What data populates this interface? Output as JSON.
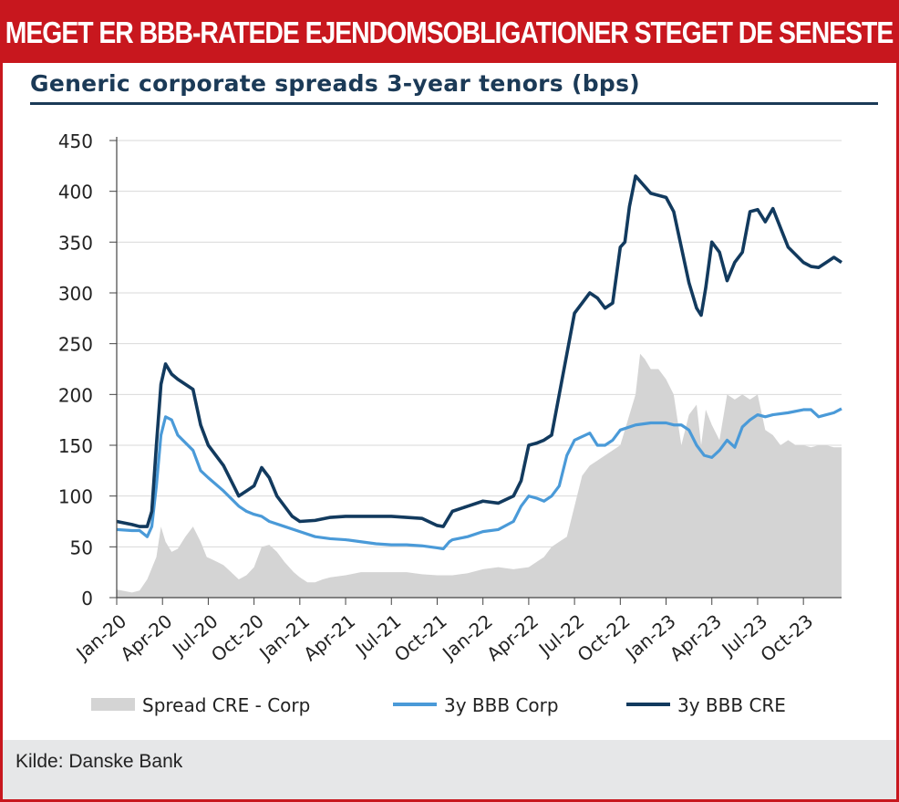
{
  "header": {
    "title": "SÅ MEGET ER BBB-RATEDE EJENDOMSOBLIGATIONER STEGET DE SENESTE ÅR"
  },
  "footer": {
    "source": "Kilde: Danske Bank"
  },
  "colors": {
    "banner": "#c8171e",
    "navy": "#123a5e",
    "light_blue": "#4a9ad8",
    "area_gray": "#d4d4d4"
  },
  "chart_data": {
    "type": "line",
    "title": "Generic corporate spreads 3-year tenors (bps)",
    "xlabel": "",
    "ylabel": "",
    "ylim": [
      0,
      450
    ],
    "yticks": [
      "0",
      "50",
      "100",
      "150",
      "200",
      "250",
      "300",
      "350",
      "400",
      "450"
    ],
    "categories": [
      "Jan-20",
      "Apr-20",
      "Jul-20",
      "Oct-20",
      "Jan-21",
      "Apr-21",
      "Jul-21",
      "Oct-21",
      "Jan-22",
      "Apr-22",
      "Jul-22",
      "Oct-22",
      "Jan-23",
      "Apr-23",
      "Jul-23",
      "Oct-23"
    ],
    "x_month_range": [
      0,
      47.5
    ],
    "series": [
      {
        "name": "Spread CRE - Corp",
        "type": "area",
        "x": [
          0,
          1,
          1.5,
          2,
          2.6,
          2.9,
          3.2,
          3.6,
          4,
          4.5,
          5,
          5.5,
          5.9,
          6.2,
          6.6,
          7,
          7.5,
          8,
          8.5,
          9,
          9.5,
          10,
          10.5,
          11,
          11.6,
          12,
          12.5,
          13,
          13.5,
          14,
          15,
          16,
          17,
          18,
          19,
          20,
          21,
          22,
          23,
          24,
          25,
          26,
          27,
          28,
          28.5,
          29,
          29.5,
          30,
          30.5,
          31,
          31.5,
          32,
          33,
          33.5,
          34,
          34.3,
          34.6,
          35,
          35.5,
          36,
          36.5,
          37,
          37.5,
          38,
          38.3,
          38.6,
          39,
          39.5,
          40,
          40.5,
          41,
          41.5,
          42,
          42.5,
          43,
          43.5,
          44,
          44.5,
          45,
          45.5,
          46,
          46.5,
          47,
          47.5
        ],
        "values": [
          8,
          5,
          7,
          18,
          40,
          70,
          55,
          45,
          48,
          60,
          70,
          55,
          40,
          38,
          35,
          32,
          25,
          18,
          22,
          30,
          50,
          52,
          45,
          35,
          25,
          20,
          15,
          15,
          18,
          20,
          22,
          25,
          25,
          25,
          25,
          23,
          22,
          22,
          24,
          28,
          30,
          28,
          30,
          40,
          50,
          55,
          60,
          90,
          120,
          130,
          135,
          140,
          150,
          175,
          200,
          240,
          235,
          225,
          225,
          215,
          200,
          150,
          180,
          190,
          150,
          185,
          170,
          155,
          200,
          195,
          200,
          195,
          200,
          165,
          160,
          150,
          155,
          150,
          150,
          148,
          150,
          150,
          148,
          148
        ]
      },
      {
        "name": "3y BBB Corp",
        "type": "line",
        "x": [
          0,
          1,
          1.5,
          2,
          2.3,
          2.6,
          2.9,
          3.2,
          3.6,
          4,
          5,
          5.5,
          6,
          7,
          8,
          8.5,
          9,
          9.5,
          10,
          11,
          12,
          13,
          14,
          15,
          16,
          17,
          18,
          19,
          20,
          21,
          21.4,
          21.8,
          22,
          23,
          24,
          25,
          26,
          26.5,
          27,
          27.5,
          28,
          28.5,
          29,
          29.5,
          30,
          31,
          31.5,
          32,
          32.5,
          33,
          34,
          35,
          36,
          36.5,
          37,
          37.5,
          38,
          38.5,
          39,
          39.5,
          40,
          40.5,
          41,
          41.5,
          42,
          42.5,
          43,
          44,
          45,
          45.5,
          46,
          46.5,
          47,
          47.5
        ],
        "values": [
          67,
          66,
          66,
          60,
          70,
          110,
          160,
          178,
          175,
          160,
          145,
          125,
          118,
          105,
          90,
          85,
          82,
          80,
          75,
          70,
          65,
          60,
          58,
          57,
          55,
          53,
          52,
          52,
          51,
          49,
          48,
          55,
          57,
          60,
          65,
          67,
          75,
          90,
          100,
          98,
          95,
          100,
          110,
          140,
          155,
          162,
          150,
          150,
          155,
          165,
          170,
          172,
          172,
          170,
          170,
          165,
          150,
          140,
          138,
          145,
          155,
          148,
          168,
          175,
          180,
          178,
          180,
          182,
          185,
          185,
          178,
          180,
          182,
          186
        ]
      },
      {
        "name": "3y BBB CRE",
        "type": "line",
        "x": [
          0,
          1,
          1.5,
          2,
          2.3,
          2.6,
          2.9,
          3.2,
          3.6,
          4,
          5,
          5.5,
          6,
          7,
          8,
          8.5,
          9,
          9.5,
          10,
          10.5,
          11,
          11.5,
          12,
          13,
          14,
          15,
          16,
          17,
          18,
          19,
          20,
          21,
          21.4,
          21.8,
          22,
          23,
          24,
          25,
          26,
          26.5,
          27,
          27.5,
          28,
          28.5,
          29,
          29.5,
          30,
          31,
          31.5,
          32,
          32.5,
          33,
          33.3,
          33.6,
          34,
          35,
          36,
          36.5,
          37,
          37.5,
          38,
          38.3,
          38.6,
          39,
          39.5,
          40,
          40.5,
          41,
          41.5,
          42,
          42.5,
          43,
          44,
          45,
          45.5,
          46,
          46.5,
          47,
          47.5
        ],
        "values": [
          75,
          72,
          70,
          70,
          85,
          150,
          210,
          230,
          220,
          215,
          205,
          170,
          150,
          130,
          100,
          105,
          110,
          128,
          118,
          100,
          90,
          80,
          75,
          76,
          79,
          80,
          80,
          80,
          80,
          79,
          78,
          71,
          70,
          80,
          85,
          90,
          95,
          93,
          100,
          115,
          150,
          152,
          155,
          160,
          200,
          240,
          280,
          300,
          295,
          285,
          290,
          345,
          350,
          385,
          415,
          398,
          394,
          380,
          345,
          310,
          285,
          278,
          305,
          350,
          340,
          312,
          330,
          340,
          380,
          382,
          370,
          383,
          345,
          330,
          326,
          325,
          330,
          335,
          330
        ]
      }
    ]
  }
}
